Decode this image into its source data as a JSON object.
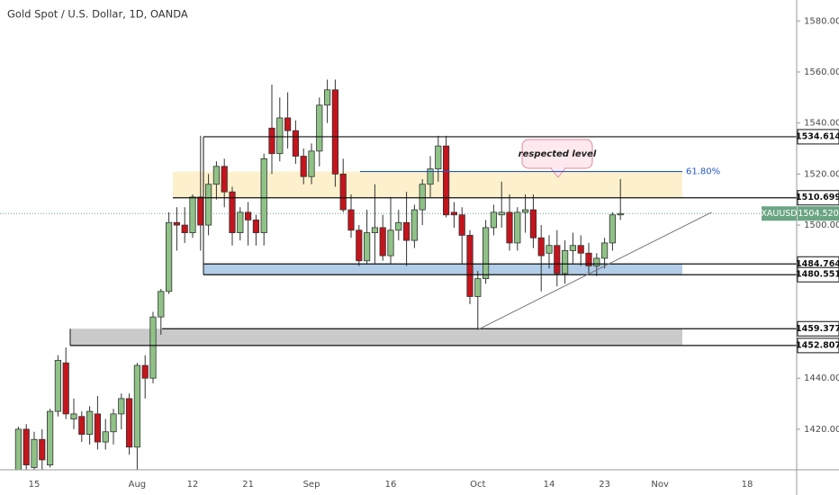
{
  "chart_data": {
    "type": "candlestick",
    "title": "Gold Spot / U.S. Dollar, 1D, OANDA",
    "symbol": "XAUUSD",
    "last_price": {
      "value": 1504.52,
      "label": "1504.520"
    },
    "up_color": "#8fc286",
    "down_color": "#c4141c",
    "categories": [
      null,
      null,
      "15",
      null,
      null,
      null,
      null,
      null,
      null,
      null,
      null,
      null,
      null,
      null,
      null,
      "Aug",
      null,
      null,
      null,
      null,
      null,
      null,
      "12",
      null,
      null,
      null,
      null,
      null,
      null,
      "21",
      null,
      null,
      null,
      null,
      null,
      null,
      null,
      "Sep",
      null,
      null,
      null,
      null,
      null,
      null,
      null,
      null,
      null,
      "16",
      null,
      null,
      null,
      null,
      null,
      null,
      null,
      null,
      null,
      null,
      "Oct",
      null,
      null,
      null,
      null,
      null,
      null,
      null,
      null,
      "14",
      null,
      null,
      null,
      null,
      null,
      null,
      "23",
      null,
      null,
      null,
      null,
      null,
      null,
      "Nov",
      null,
      null,
      null,
      null,
      null,
      null,
      null,
      null,
      null,
      null,
      "18"
    ],
    "open": [
      1402,
      1420,
      1405,
      1416,
      1406,
      1427,
      1446,
      1424,
      1425,
      1418,
      1426,
      1415,
      1419,
      1426,
      1432,
      1413,
      1445,
      1440,
      1464,
      1474,
      1501,
      1500,
      1497,
      1511,
      1500,
      1516,
      1523,
      1513,
      1497,
      1505,
      1502,
      1497,
      1538,
      1528,
      1542,
      1537,
      1527,
      1519,
      1529,
      1547,
      1553,
      1520,
      1506,
      1498,
      1486,
      1497,
      1499,
      1488,
      1498,
      1501,
      1494,
      1506,
      1516,
      1522,
      1531,
      1505,
      1504,
      1496,
      1472,
      1479,
      1499,
      1504,
      1505,
      1493,
      1505,
      1506,
      1495,
      1489,
      1492,
      1481,
      1490,
      1492,
      1489,
      1484,
      1487,
      1493,
      1504,
      null,
      null,
      null,
      null,
      null,
      null,
      null,
      null,
      null,
      null,
      null,
      null,
      null,
      null,
      null,
      null
    ],
    "high": [
      1421,
      1422,
      1419,
      1420,
      1428,
      1449,
      1452,
      1432,
      1427,
      1429,
      1433,
      1424,
      1428,
      1434,
      1434,
      1446,
      1449,
      1466,
      1475,
      1505,
      1507,
      1507,
      1512,
      1535,
      1520,
      1525,
      1526,
      1515,
      1507,
      1509,
      1504,
      1528,
      1555,
      1550,
      1552,
      1541,
      1530,
      1532,
      1550,
      1557,
      1557,
      1526,
      1512,
      1500,
      1506,
      1516,
      1504,
      1511,
      1506,
      1513,
      1508,
      1518,
      1527,
      1535,
      1535,
      1509,
      1507,
      1498,
      1482,
      1502,
      1508,
      1517,
      1512,
      1507,
      1512,
      1512,
      1500,
      1496,
      1498,
      1494,
      1497,
      1496,
      1493,
      1489,
      1495,
      1505,
      1518,
      null,
      null,
      null,
      null,
      null,
      null,
      null,
      null,
      null,
      null,
      null,
      null,
      null,
      null,
      null,
      null
    ],
    "low": [
      1400,
      1402,
      1404,
      1403,
      1405,
      1425,
      1424,
      1420,
      1415,
      1414,
      1412,
      1412,
      1414,
      1420,
      1410,
      1400,
      1432,
      1438,
      1457,
      1473,
      1490,
      1493,
      1495,
      1490,
      1496,
      1510,
      1507,
      1492,
      1494,
      1492,
      1492,
      1492,
      1520,
      1525,
      1530,
      1524,
      1516,
      1516,
      1523,
      1540,
      1515,
      1505,
      1495,
      1484,
      1485,
      1485,
      1486,
      1485,
      1494,
      1484,
      1491,
      1500,
      1511,
      1517,
      1503,
      1499,
      1485,
      1469,
      1459,
      1477,
      1496,
      1499,
      1490,
      1490,
      1497,
      1491,
      1474,
      1483,
      1476,
      1477,
      1485,
      1484,
      1481,
      1480,
      1483,
      1490,
      1502,
      null,
      null,
      null,
      null,
      null,
      null,
      null,
      null,
      null,
      null,
      null,
      null,
      null,
      null,
      null,
      null
    ],
    "close": [
      1420,
      1406,
      1416,
      1408,
      1427,
      1447,
      1426,
      1426,
      1418,
      1427,
      1415,
      1419,
      1426,
      1432,
      1413,
      1445,
      1440,
      1464,
      1474,
      1501,
      1500,
      1497,
      1511,
      1500,
      1516,
      1523,
      1513,
      1497,
      1505,
      1502,
      1497,
      1526,
      1528,
      1542,
      1537,
      1527,
      1519,
      1529,
      1547,
      1553,
      1520,
      1506,
      1498,
      1486,
      1497,
      1499,
      1488,
      1498,
      1501,
      1494,
      1506,
      1516,
      1522,
      1531,
      1504,
      1504,
      1496,
      1472,
      1479,
      1499,
      1505,
      1505,
      1493,
      1505,
      1506,
      1495,
      1488,
      1492,
      1481,
      1490,
      1492,
      1489,
      1484,
      1487,
      1493,
      1504,
      1504.52,
      null,
      null,
      null,
      null,
      null,
      null,
      null,
      null,
      null,
      null,
      null,
      null,
      null,
      null,
      null,
      null
    ],
    "ylim": [
      1404.1,
      1588.2
    ],
    "yticks": [
      {
        "value": 1420,
        "label": "1420.000"
      },
      {
        "value": 1440,
        "label": "1440.000"
      },
      {
        "value": 1460,
        "label": "1460.000"
      },
      {
        "value": 1480,
        "label": "1480.000"
      },
      {
        "value": 1500,
        "label": "1500.000"
      },
      {
        "value": 1520,
        "label": "1520.000"
      },
      {
        "value": 1540,
        "label": "1540.000"
      },
      {
        "value": 1560,
        "label": "1560.000"
      },
      {
        "value": 1580,
        "label": "1580.000"
      }
    ],
    "levels": [
      {
        "value": 1534.614,
        "label": "1534.614"
      },
      {
        "value": 1510.699,
        "label": "1510.699"
      },
      {
        "value": 1484.764,
        "label": "1484.764"
      },
      {
        "value": 1480.551,
        "label": "1480.551"
      },
      {
        "value": 1459.377,
        "label": "1459.377"
      },
      {
        "value": 1452.807,
        "label": "1452.807"
      }
    ],
    "zones": [
      {
        "low": 1510.699,
        "high": 1521,
        "color": "#fcefc7"
      },
      {
        "low": 1480.551,
        "high": 1484.764,
        "color": "#a9c8e6"
      },
      {
        "low": 1452.807,
        "high": 1459.377,
        "color": "#c4c4c4"
      }
    ],
    "fib": {
      "value": 1521,
      "label": "61.80%",
      "color": "#2557c7"
    },
    "trendline": {
      "x": [
        58,
        87.5
      ],
      "values": [
        1459,
        1505
      ]
    },
    "annotation": "respected level"
  }
}
